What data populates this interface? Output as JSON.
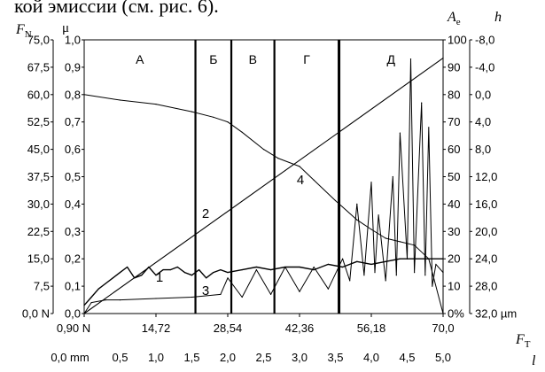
{
  "caption_fragment": "кой эмиссии (см. рис. 6).",
  "chart_data": {
    "type": "line",
    "axes": {
      "FN": {
        "label": "F",
        "label_sub": "N",
        "ticks": [
          "75,0",
          "67,5",
          "60,0",
          "52,5",
          "45,0",
          "37,5",
          "30,0",
          "22,5",
          "15,0",
          "7,5",
          "0,0 N"
        ],
        "range": [
          0,
          75
        ]
      },
      "mu": {
        "label": "μ",
        "ticks": [
          "1,0",
          "0,9",
          "0,8",
          "0,7",
          "0,6",
          "0,5",
          "0,4",
          "0,3",
          "0,2",
          "0,1",
          "0,0"
        ],
        "range": [
          0,
          1
        ]
      },
      "Ae": {
        "label": "A",
        "label_sub": "e",
        "ticks": [
          "100",
          "90",
          "80",
          "70",
          "60",
          "50",
          "40",
          "30",
          "20",
          "10",
          "0%"
        ],
        "range": [
          0,
          100
        ]
      },
      "h": {
        "label": "h",
        "ticks": [
          "-8,0",
          "-4,0",
          "0,0",
          "4,0",
          "8,0",
          "12,0",
          "16,0",
          "20,0",
          "24,0",
          "28,0",
          "32,0 µm"
        ],
        "range": [
          -8,
          32
        ],
        "inverted": true
      },
      "FT": {
        "label": "F",
        "label_sub": "T",
        "ticks": [
          "0,90 N",
          "14,72",
          "28,54",
          "42,36",
          "56,18",
          "70,0"
        ],
        "range": [
          0.9,
          70.0
        ]
      },
      "l": {
        "label": "l",
        "ticks": [
          "0,0 mm",
          "0,5",
          "1,0",
          "1,5",
          "2,0",
          "2,5",
          "3,0",
          "3,5",
          "4,0",
          "4,5",
          "5,0"
        ],
        "range": [
          0,
          5
        ]
      }
    },
    "zones": [
      {
        "label": "А",
        "l_start": 0.0,
        "l_end": 1.55
      },
      {
        "label": "Б",
        "l_start": 1.55,
        "l_end": 2.05
      },
      {
        "label": "В",
        "l_start": 2.05,
        "l_end": 2.65
      },
      {
        "label": "Г",
        "l_start": 2.65,
        "l_end": 3.55
      },
      {
        "label": "Д",
        "l_start": 3.55,
        "l_end": 5.0
      }
    ],
    "boundaries_l": [
      1.55,
      2.05,
      2.65,
      3.55
    ],
    "series": [
      {
        "name": "1",
        "axis": "mu",
        "x_l": [
          0,
          0.1,
          0.2,
          0.3,
          0.4,
          0.5,
          0.6,
          0.7,
          0.8,
          0.9,
          1.0,
          1.1,
          1.2,
          1.3,
          1.4,
          1.5,
          1.6,
          1.7,
          1.8,
          1.9,
          2.0,
          2.2,
          2.4,
          2.6,
          2.8,
          3.0,
          3.2,
          3.4,
          3.6,
          3.8,
          4.0,
          4.2,
          4.4,
          4.6,
          4.8,
          5.0
        ],
        "values": [
          0.03,
          0.06,
          0.09,
          0.11,
          0.13,
          0.15,
          0.17,
          0.13,
          0.14,
          0.17,
          0.14,
          0.16,
          0.16,
          0.17,
          0.15,
          0.14,
          0.16,
          0.13,
          0.15,
          0.16,
          0.15,
          0.16,
          0.17,
          0.16,
          0.17,
          0.17,
          0.16,
          0.18,
          0.17,
          0.19,
          0.18,
          0.19,
          0.2,
          0.2,
          0.2,
          0.2
        ]
      },
      {
        "name": "2",
        "axis": "FN",
        "x_l": [
          0,
          5.0
        ],
        "values": [
          0.0,
          70.0
        ]
      },
      {
        "name": "3",
        "axis": "Ae",
        "x_l": [
          0,
          0.1,
          0.3,
          0.5,
          1.0,
          1.5,
          1.9,
          2.0,
          2.2,
          2.4,
          2.6,
          2.8,
          3.0,
          3.2,
          3.4,
          3.6,
          3.7,
          3.8,
          3.9,
          4.0,
          4.05,
          4.1,
          4.2,
          4.3,
          4.35,
          4.4,
          4.5,
          4.55,
          4.6,
          4.7,
          4.75,
          4.8,
          4.85,
          4.9,
          5.0
        ],
        "values": [
          0,
          4,
          5,
          5,
          5.5,
          6,
          7,
          13,
          6,
          16,
          7,
          17,
          8,
          17,
          9,
          20,
          12,
          40,
          14,
          48,
          15,
          36,
          12,
          50,
          14,
          66,
          20,
          93,
          15,
          77,
          14,
          68,
          10,
          18,
          15
        ]
      },
      {
        "name": "4",
        "axis": "h",
        "x_l": [
          0,
          0.5,
          1.0,
          1.5,
          1.8,
          2.0,
          2.2,
          2.5,
          2.7,
          3.0,
          3.2,
          3.5,
          3.8,
          4.0,
          4.2,
          4.4,
          4.6,
          4.8,
          5.0
        ],
        "values": [
          0.0,
          0.8,
          1.4,
          2.5,
          3.3,
          4.0,
          5.5,
          8.0,
          9.3,
          10.5,
          12.5,
          15.5,
          18.3,
          19.7,
          21.0,
          21.5,
          22.0,
          24.0,
          32.0
        ]
      }
    ],
    "grid": false
  }
}
